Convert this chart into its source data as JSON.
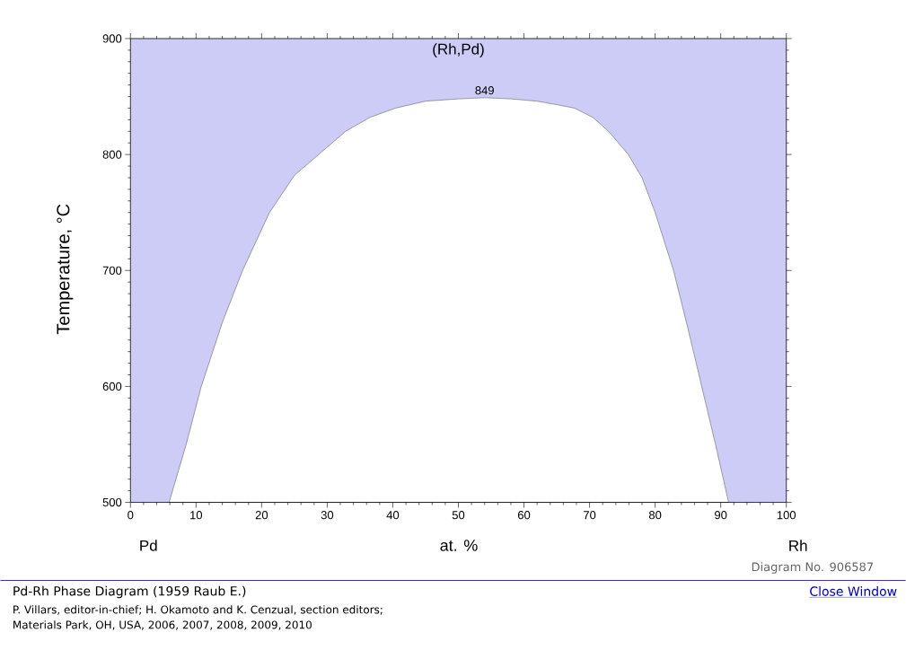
{
  "chart_data": {
    "type": "area",
    "title": "Pd-Rh Phase Diagram (1959 Raub E.)",
    "xlabel": "at. %",
    "ylabel": "Temperature, °C",
    "xlim": [
      0,
      100
    ],
    "ylim": [
      500,
      900
    ],
    "xticks": [
      0,
      10,
      20,
      30,
      40,
      50,
      60,
      70,
      80,
      90,
      100
    ],
    "yticks": [
      500,
      600,
      700,
      800,
      900
    ],
    "bands": [
      {
        "axis": "y",
        "from": 500,
        "to": 900,
        "label": "(Rh,Pd)",
        "color": "#ccccf7"
      }
    ],
    "series": [
      {
        "color": "#ffffff",
        "x": [
          5.9,
          8.5,
          10.8,
          14,
          17.1,
          21.2,
          25,
          28.7,
          32.8,
          36.5,
          40.4,
          45,
          50,
          54,
          58,
          62,
          65,
          67.7,
          70.5,
          72.9,
          75.9,
          78,
          80,
          82.8,
          85,
          87.1,
          89.2,
          91.2
        ],
        "values": [
          500,
          550,
          600,
          655,
          700,
          750,
          782,
          800,
          820,
          832,
          840,
          846,
          848,
          849,
          848,
          846,
          843,
          840,
          832,
          820,
          800,
          780,
          750,
          700,
          650,
          600,
          550,
          500
        ]
      }
    ],
    "annotations": [
      {
        "text": "849",
        "x": 54,
        "y": 849
      },
      "Pd",
      "Rh",
      "Diagram No. 906587",
      "P. Villars, editor-in-chief; H. Okamoto and K. Cenzual, section editors;",
      "Materials Park, OH, USA, 2006, 2007, 2008, 2009, 2010",
      "Close Window"
    ]
  }
}
